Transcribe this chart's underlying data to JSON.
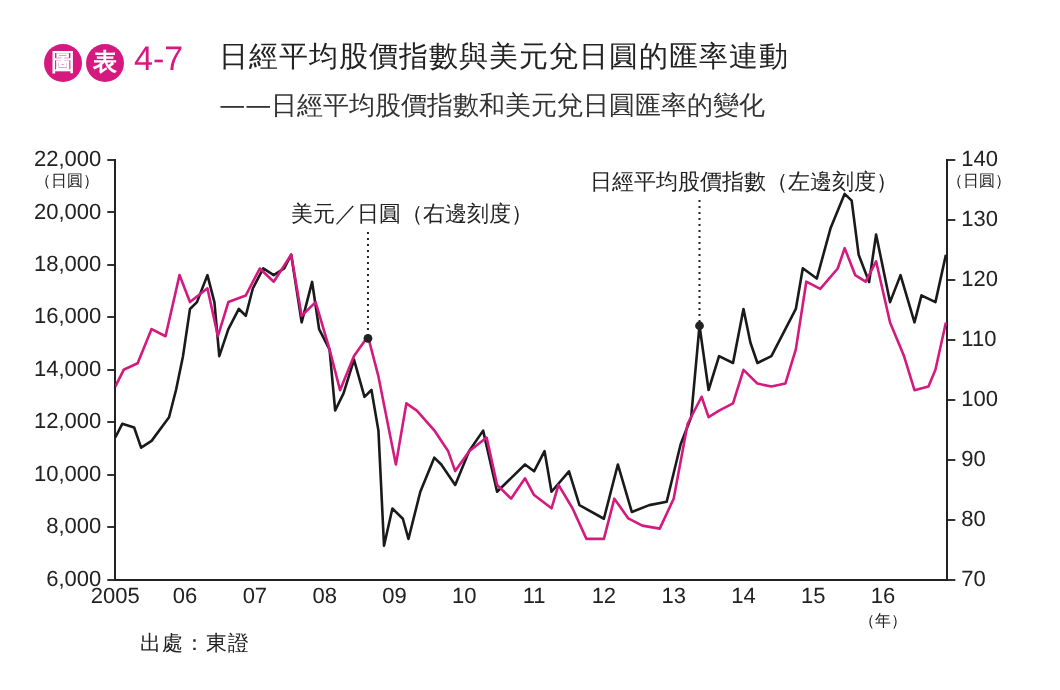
{
  "chart_data": {
    "type": "line",
    "title": "日經平均股價指數與美元兌日圓的匯率連動",
    "subtitle": "——日經平均股價指數和美元兌日圓匯率的變化",
    "xlabel": "（年）",
    "ylabel": "（日圓）",
    "y2label": "（日圓）",
    "xlim": [
      2005,
      2016.92
    ],
    "xticks": [
      {
        "value": 2005,
        "label": "2005"
      },
      {
        "value": 2006,
        "label": "06"
      },
      {
        "value": 2007,
        "label": "07"
      },
      {
        "value": 2008,
        "label": "08"
      },
      {
        "value": 2009,
        "label": "09"
      },
      {
        "value": 2010,
        "label": "10"
      },
      {
        "value": 2011,
        "label": "11"
      },
      {
        "value": 2012,
        "label": "12"
      },
      {
        "value": 2013,
        "label": "13"
      },
      {
        "value": 2014,
        "label": "14"
      },
      {
        "value": 2015,
        "label": "15"
      },
      {
        "value": 2016,
        "label": "16"
      }
    ],
    "ylim": [
      6000,
      22000
    ],
    "yticks": [
      {
        "value": 6000,
        "label": "6,000"
      },
      {
        "value": 8000,
        "label": "8,000"
      },
      {
        "value": 10000,
        "label": "10,000"
      },
      {
        "value": 12000,
        "label": "12,000"
      },
      {
        "value": 14000,
        "label": "14,000"
      },
      {
        "value": 16000,
        "label": "16,000"
      },
      {
        "value": 18000,
        "label": "18,000"
      },
      {
        "value": 20000,
        "label": "20,000"
      },
      {
        "value": 22000,
        "label": "22,000"
      }
    ],
    "y2lim": [
      70,
      140
    ],
    "y2ticks": [
      70,
      80,
      90,
      100,
      110,
      120,
      130,
      140
    ],
    "grid": false,
    "legend": false,
    "marker": "none",
    "line_style": "solid",
    "annotations": [
      "圖表",
      "4-7",
      "出處：東證",
      {
        "text": "美元／日圓（右邊刻度）",
        "x": 2008.62,
        "y": 15200
      },
      {
        "text": "日經平均股價指數（左邊刻度）",
        "x": 2013.37,
        "y": 15680
      }
    ],
    "series": [
      {
        "color": "#1a1a1a",
        "x": [
          2005.0,
          2005.1,
          2005.27,
          2005.37,
          2005.52,
          2005.77,
          2005.87,
          2005.97,
          2006.07,
          2006.17,
          2006.32,
          2006.42,
          2006.49,
          2006.62,
          2006.77,
          2006.87,
          2006.97,
          2007.12,
          2007.27,
          2007.42,
          2007.52,
          2007.67,
          2007.82,
          2007.92,
          2008.07,
          2008.15,
          2008.27,
          2008.42,
          2008.57,
          2008.67,
          2008.77,
          2008.85,
          2008.97,
          2009.12,
          2009.2,
          2009.37,
          2009.57,
          2009.67,
          2009.87,
          2010.07,
          2010.27,
          2010.47,
          2010.67,
          2010.87,
          2011.0,
          2011.15,
          2011.25,
          2011.5,
          2011.65,
          2012.0,
          2012.2,
          2012.4,
          2012.65,
          2012.9,
          2013.1,
          2013.25,
          2013.37,
          2013.5,
          2013.65,
          2013.85,
          2014.0,
          2014.1,
          2014.2,
          2014.4,
          2014.6,
          2014.75,
          2014.85,
          2015.05,
          2015.25,
          2015.45,
          2015.55,
          2015.65,
          2015.8,
          2015.9,
          2016.1,
          2016.25,
          2016.45,
          2016.55,
          2016.75,
          2016.9
        ],
        "values": [
          11420,
          11940,
          11800,
          11030,
          11290,
          12190,
          13230,
          14520,
          16320,
          16580,
          17610,
          16580,
          14520,
          15550,
          16320,
          16060,
          17100,
          17870,
          17610,
          17870,
          18390,
          15810,
          17350,
          15550,
          14770,
          12450,
          13100,
          14390,
          12970,
          13230,
          11680,
          7290,
          8710,
          8320,
          7550,
          9350,
          10650,
          10390,
          9610,
          10900,
          11680,
          9350,
          9870,
          10390,
          10130,
          10900,
          9350,
          10130,
          8840,
          8320,
          10390,
          8580,
          8840,
          8970,
          11160,
          12190,
          15680,
          13230,
          14520,
          14260,
          16320,
          15030,
          14260,
          14520,
          15550,
          16320,
          17870,
          17480,
          19420,
          20710,
          20450,
          18390,
          17350,
          19160,
          16580,
          17610,
          15810,
          16840,
          16580,
          18390
        ]
      },
      {
        "color": "#d4197f",
        "axis": "y2",
        "x": [
          2005.0,
          2005.12,
          2005.32,
          2005.52,
          2005.72,
          2005.92,
          2006.07,
          2006.32,
          2006.47,
          2006.62,
          2006.87,
          2007.07,
          2007.27,
          2007.52,
          2007.67,
          2007.87,
          2008.07,
          2008.22,
          2008.42,
          2008.62,
          2008.77,
          2009.02,
          2009.17,
          2009.32,
          2009.57,
          2009.77,
          2009.87,
          2010.07,
          2010.32,
          2010.47,
          2010.67,
          2010.87,
          2011.0,
          2011.25,
          2011.35,
          2011.55,
          2011.75,
          2012.0,
          2012.15,
          2012.35,
          2012.55,
          2012.8,
          2013.0,
          2013.2,
          2013.4,
          2013.5,
          2013.65,
          2013.85,
          2014.0,
          2014.2,
          2014.4,
          2014.6,
          2014.75,
          2014.9,
          2015.1,
          2015.35,
          2015.45,
          2015.6,
          2015.75,
          2015.9,
          2016.1,
          2016.3,
          2016.45,
          2016.65,
          2016.75,
          2016.9
        ],
        "values": [
          102.2,
          105.0,
          106.1,
          111.8,
          110.6,
          120.8,
          116.3,
          118.6,
          110.6,
          116.3,
          117.4,
          121.9,
          119.7,
          124.2,
          114.0,
          116.3,
          108.4,
          101.6,
          107.3,
          110.6,
          103.9,
          89.2,
          99.4,
          98.2,
          94.9,
          91.4,
          88.1,
          91.4,
          93.7,
          85.8,
          83.5,
          86.9,
          84.1,
          81.9,
          85.8,
          81.9,
          76.8,
          76.8,
          83.5,
          80.2,
          79.0,
          78.5,
          83.5,
          96.0,
          100.5,
          97.1,
          98.2,
          99.4,
          105.0,
          102.7,
          102.2,
          102.7,
          108.4,
          119.7,
          118.5,
          121.9,
          125.3,
          120.8,
          119.7,
          123.1,
          112.9,
          107.3,
          101.6,
          102.2,
          105.0,
          112.9
        ]
      }
    ]
  }
}
